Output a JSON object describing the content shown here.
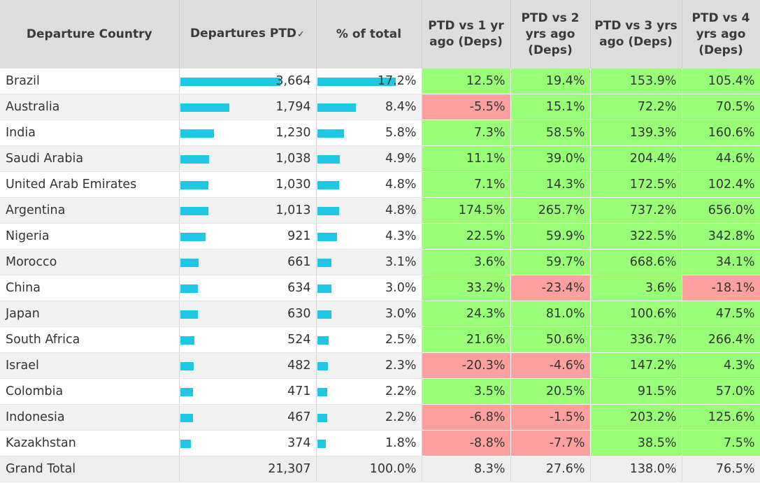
{
  "headers": {
    "country": "Departure Country",
    "departures": "Departures PTD",
    "departures_sort_icon": "✓",
    "pct": "% of total",
    "c1": "PTD vs 1 yr ago (Deps)",
    "c2": "PTD vs 2 yrs ago (Deps)",
    "c3": "PTD vs 3 yrs ago (Deps)",
    "c4": "PTD vs 4 yrs ago (Deps)"
  },
  "colors": {
    "bar": "#1ec8e4",
    "positive": "#99ff77",
    "negative": "#ffa0a0"
  },
  "rows": [
    {
      "country": "Brazil",
      "departures": "3,664",
      "dep_value": 3664,
      "pct": "17.2%",
      "pct_value": 17.2,
      "c1": "12.5%",
      "c2": "19.4%",
      "c3": "153.9%",
      "c4": "105.4%"
    },
    {
      "country": "Australia",
      "departures": "1,794",
      "dep_value": 1794,
      "pct": "8.4%",
      "pct_value": 8.4,
      "c1": "-5.5%",
      "c2": "15.1%",
      "c3": "72.2%",
      "c4": "70.5%"
    },
    {
      "country": "India",
      "departures": "1,230",
      "dep_value": 1230,
      "pct": "5.8%",
      "pct_value": 5.8,
      "c1": "7.3%",
      "c2": "58.5%",
      "c3": "139.3%",
      "c4": "160.6%"
    },
    {
      "country": "Saudi Arabia",
      "departures": "1,038",
      "dep_value": 1038,
      "pct": "4.9%",
      "pct_value": 4.9,
      "c1": "11.1%",
      "c2": "39.0%",
      "c3": "204.4%",
      "c4": "44.6%"
    },
    {
      "country": "United Arab Emirates",
      "departures": "1,030",
      "dep_value": 1030,
      "pct": "4.8%",
      "pct_value": 4.8,
      "c1": "7.1%",
      "c2": "14.3%",
      "c3": "172.5%",
      "c4": "102.4%"
    },
    {
      "country": "Argentina",
      "departures": "1,013",
      "dep_value": 1013,
      "pct": "4.8%",
      "pct_value": 4.8,
      "c1": "174.5%",
      "c2": "265.7%",
      "c3": "737.2%",
      "c4": "656.0%"
    },
    {
      "country": "Nigeria",
      "departures": "921",
      "dep_value": 921,
      "pct": "4.3%",
      "pct_value": 4.3,
      "c1": "22.5%",
      "c2": "59.9%",
      "c3": "322.5%",
      "c4": "342.8%"
    },
    {
      "country": "Morocco",
      "departures": "661",
      "dep_value": 661,
      "pct": "3.1%",
      "pct_value": 3.1,
      "c1": "3.6%",
      "c2": "59.7%",
      "c3": "668.6%",
      "c4": "34.1%"
    },
    {
      "country": "China",
      "departures": "634",
      "dep_value": 634,
      "pct": "3.0%",
      "pct_value": 3.0,
      "c1": "33.2%",
      "c2": "-23.4%",
      "c3": "3.6%",
      "c4": "-18.1%"
    },
    {
      "country": "Japan",
      "departures": "630",
      "dep_value": 630,
      "pct": "3.0%",
      "pct_value": 3.0,
      "c1": "24.3%",
      "c2": "81.0%",
      "c3": "100.6%",
      "c4": "47.5%"
    },
    {
      "country": "South Africa",
      "departures": "524",
      "dep_value": 524,
      "pct": "2.5%",
      "pct_value": 2.5,
      "c1": "21.6%",
      "c2": "50.6%",
      "c3": "336.7%",
      "c4": "266.4%"
    },
    {
      "country": "Israel",
      "departures": "482",
      "dep_value": 482,
      "pct": "2.3%",
      "pct_value": 2.3,
      "c1": "-20.3%",
      "c2": "-4.6%",
      "c3": "147.2%",
      "c4": "4.3%"
    },
    {
      "country": "Colombia",
      "departures": "471",
      "dep_value": 471,
      "pct": "2.2%",
      "pct_value": 2.2,
      "c1": "3.5%",
      "c2": "20.5%",
      "c3": "91.5%",
      "c4": "57.0%"
    },
    {
      "country": "Indonesia",
      "departures": "467",
      "dep_value": 467,
      "pct": "2.2%",
      "pct_value": 2.2,
      "c1": "-6.8%",
      "c2": "-1.5%",
      "c3": "203.2%",
      "c4": "125.6%"
    },
    {
      "country": "Kazakhstan",
      "departures": "374",
      "dep_value": 374,
      "pct": "1.8%",
      "pct_value": 1.8,
      "c1": "-8.8%",
      "c2": "-7.7%",
      "c3": "38.5%",
      "c4": "7.5%"
    }
  ],
  "total": {
    "label": "Grand Total",
    "departures": "21,307",
    "pct": "100.0%",
    "c1": "8.3%",
    "c2": "27.6%",
    "c3": "138.0%",
    "c4": "76.5%"
  }
}
